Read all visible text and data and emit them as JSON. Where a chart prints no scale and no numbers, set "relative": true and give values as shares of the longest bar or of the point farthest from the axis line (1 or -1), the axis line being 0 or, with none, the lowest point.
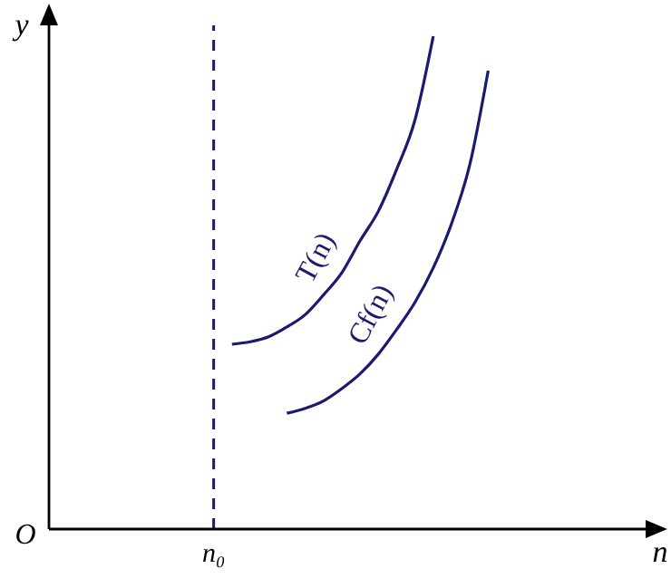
{
  "chart_data": {
    "type": "line",
    "relative": true,
    "xlabel": "n",
    "ylabel": "y",
    "categories": [
      null,
      null,
      null,
      null,
      null,
      null,
      null,
      null,
      null,
      null,
      null,
      null,
      null,
      null,
      null,
      null,
      null,
      null,
      null,
      null,
      null,
      null,
      null,
      null,
      null,
      null,
      null,
      null,
      null,
      null,
      null,
      null,
      null,
      null
    ],
    "annotations": [
      "O",
      "n₀"
    ],
    "marker": "none",
    "line_style": "solid",
    "series": [
      {
        "name": "T(n)",
        "color": "#1a1a6e",
        "values": [
          null,
          null,
          null,
          null,
          null,
          null,
          null,
          null,
          null,
          null,
          0.375,
          0.38,
          0.39,
          0.41,
          0.435,
          0.475,
          0.52,
          0.585,
          0.645,
          0.73,
          0.83,
          1.0,
          null,
          null,
          null,
          null,
          null,
          null,
          null,
          null,
          null,
          null,
          null,
          null
        ]
      },
      {
        "name": "Cf(n)",
        "color": "#1a1a6e",
        "values": [
          null,
          null,
          null,
          null,
          null,
          null,
          null,
          null,
          null,
          null,
          null,
          null,
          null,
          0.235,
          0.245,
          0.26,
          0.285,
          0.315,
          0.355,
          0.405,
          0.46,
          0.53,
          0.62,
          0.74,
          0.93,
          null,
          null,
          null,
          null,
          null,
          null,
          null,
          null,
          null
        ]
      }
    ]
  }
}
